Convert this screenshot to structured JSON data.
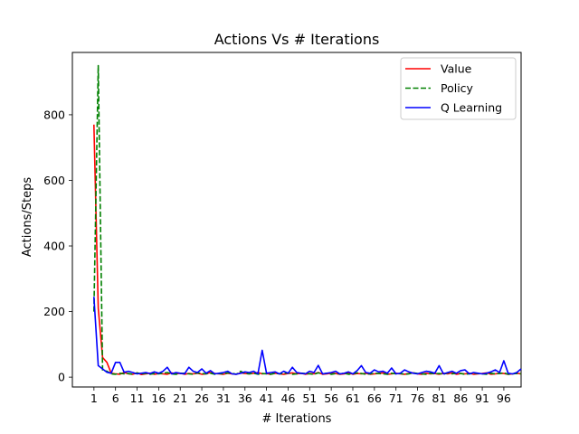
{
  "chart_data": {
    "type": "line",
    "title": "Actions Vs # Iterations",
    "xlabel": "# Iterations",
    "ylabel": "Actions/Steps",
    "xlim": [
      -4,
      100
    ],
    "ylim": [
      -30,
      990
    ],
    "xticks": [
      1,
      6,
      11,
      16,
      21,
      26,
      31,
      36,
      41,
      46,
      51,
      56,
      61,
      66,
      71,
      76,
      81,
      86,
      91,
      96
    ],
    "yticks": [
      0,
      200,
      400,
      600,
      800
    ],
    "grid": false,
    "legend_position": "top-right",
    "series": [
      {
        "name": "Value",
        "color": "#ff0000",
        "style": "solid",
        "x": [
          1,
          2,
          3,
          4,
          5,
          6,
          7,
          8,
          9,
          10,
          11,
          12,
          13,
          14,
          15,
          16,
          17,
          18,
          19,
          20,
          21,
          22,
          23,
          24,
          25,
          26,
          27,
          28,
          29,
          30,
          31,
          32,
          33,
          34,
          35,
          36,
          37,
          38,
          39,
          40,
          41,
          42,
          43,
          44,
          45,
          46,
          47,
          48,
          49,
          50,
          51,
          52,
          53,
          54,
          55,
          56,
          57,
          58,
          59,
          60,
          61,
          62,
          63,
          64,
          65,
          66,
          67,
          68,
          69,
          70,
          71,
          72,
          73,
          74,
          75,
          76,
          77,
          78,
          79,
          80,
          81,
          82,
          83,
          84,
          85,
          86,
          87,
          88,
          89,
          90,
          91,
          92,
          93,
          94,
          95,
          96,
          97,
          98,
          99,
          100
        ],
        "y": [
          770,
          210,
          60,
          45,
          12,
          10,
          9,
          14,
          10,
          9,
          13,
          8,
          10,
          12,
          9,
          11,
          10,
          9,
          13,
          10,
          12,
          9,
          11,
          10,
          12,
          9,
          10,
          14,
          11,
          10,
          9,
          12,
          10,
          9,
          13,
          11,
          10,
          12,
          14,
          10,
          11,
          9,
          12,
          10,
          9,
          11,
          13,
          10,
          12,
          9,
          11,
          10,
          14,
          9,
          10,
          12,
          11,
          9,
          10,
          13,
          9,
          11,
          10,
          12,
          9,
          10,
          11,
          13,
          9,
          10,
          12,
          10,
          9,
          11,
          13,
          10,
          9,
          12,
          10,
          11,
          9,
          12,
          10,
          13,
          9,
          11,
          10,
          12,
          9,
          10,
          11,
          13,
          9,
          10,
          12,
          11,
          9,
          10,
          12,
          10
        ]
      },
      {
        "name": "Policy",
        "color": "#008000",
        "style": "dashed",
        "x": [
          1,
          2,
          3,
          4,
          5,
          6,
          7,
          8,
          9,
          10,
          11,
          12,
          13,
          14,
          15,
          16,
          17,
          18,
          19,
          20,
          21,
          22,
          23,
          24,
          25,
          26,
          27,
          28,
          29,
          30,
          31,
          32,
          33,
          34,
          35,
          36,
          37,
          38,
          39,
          40,
          41,
          42,
          43,
          44,
          45,
          46,
          47,
          48,
          49,
          50,
          51,
          52,
          53,
          54,
          55,
          56,
          57,
          58,
          59,
          60,
          61,
          62,
          63,
          64,
          65,
          66,
          67,
          68,
          69,
          70,
          71,
          72,
          73,
          74,
          75,
          76,
          77,
          78,
          79,
          80,
          81,
          82,
          83,
          84,
          85,
          86,
          87,
          88,
          89,
          90,
          91,
          92,
          93,
          94,
          95,
          96,
          97,
          98,
          99,
          100
        ],
        "y": [
          200,
          950,
          20,
          18,
          10,
          9,
          12,
          10,
          11,
          9,
          13,
          10,
          12,
          9,
          11,
          10,
          12,
          14,
          10,
          9,
          11,
          12,
          10,
          9,
          13,
          11,
          10,
          12,
          9,
          11,
          10,
          13,
          12,
          9,
          18,
          11,
          10,
          12,
          9,
          11,
          10,
          9,
          12,
          10,
          11,
          13,
          9,
          10,
          12,
          11,
          10,
          9,
          13,
          10,
          12,
          9,
          11,
          10,
          12,
          9,
          10,
          13,
          11,
          9,
          10,
          12,
          11,
          10,
          9,
          12,
          10,
          11,
          9,
          10,
          13,
          11,
          10,
          9,
          12,
          10,
          11,
          9,
          13,
          10,
          12,
          11,
          9,
          10,
          12,
          11,
          10,
          9,
          12,
          10,
          11,
          13,
          9,
          10,
          11,
          10
        ]
      },
      {
        "name": "Q Learning",
        "color": "#0000ff",
        "style": "solid",
        "x": [
          1,
          2,
          3,
          4,
          5,
          6,
          7,
          8,
          9,
          10,
          11,
          12,
          13,
          14,
          15,
          16,
          17,
          18,
          19,
          20,
          21,
          22,
          23,
          24,
          25,
          26,
          27,
          28,
          29,
          30,
          31,
          32,
          33,
          34,
          35,
          36,
          37,
          38,
          39,
          40,
          41,
          42,
          43,
          44,
          45,
          46,
          47,
          48,
          49,
          50,
          51,
          52,
          53,
          54,
          55,
          56,
          57,
          58,
          59,
          60,
          61,
          62,
          63,
          64,
          65,
          66,
          67,
          68,
          69,
          70,
          71,
          72,
          73,
          74,
          75,
          76,
          77,
          78,
          79,
          80,
          81,
          82,
          83,
          84,
          85,
          86,
          87,
          88,
          89,
          90,
          91,
          92,
          93,
          94,
          95,
          96,
          97,
          98,
          99,
          100
        ],
        "y": [
          245,
          35,
          25,
          15,
          12,
          45,
          45,
          15,
          18,
          14,
          10,
          12,
          14,
          11,
          16,
          12,
          18,
          30,
          10,
          14,
          12,
          10,
          30,
          18,
          14,
          25,
          12,
          20,
          10,
          12,
          14,
          18,
          10,
          9,
          12,
          16,
          14,
          18,
          10,
          82,
          12,
          14,
          16,
          10,
          18,
          12,
          30,
          14,
          12,
          10,
          18,
          14,
          36,
          10,
          12,
          14,
          18,
          10,
          12,
          16,
          10,
          20,
          35,
          14,
          12,
          22,
          16,
          18,
          12,
          28,
          10,
          12,
          22,
          16,
          12,
          10,
          14,
          18,
          16,
          12,
          35,
          10,
          14,
          18,
          12,
          20,
          22,
          10,
          14,
          12,
          10,
          12,
          16,
          22,
          14,
          50,
          12,
          10,
          14,
          25
        ]
      }
    ]
  }
}
